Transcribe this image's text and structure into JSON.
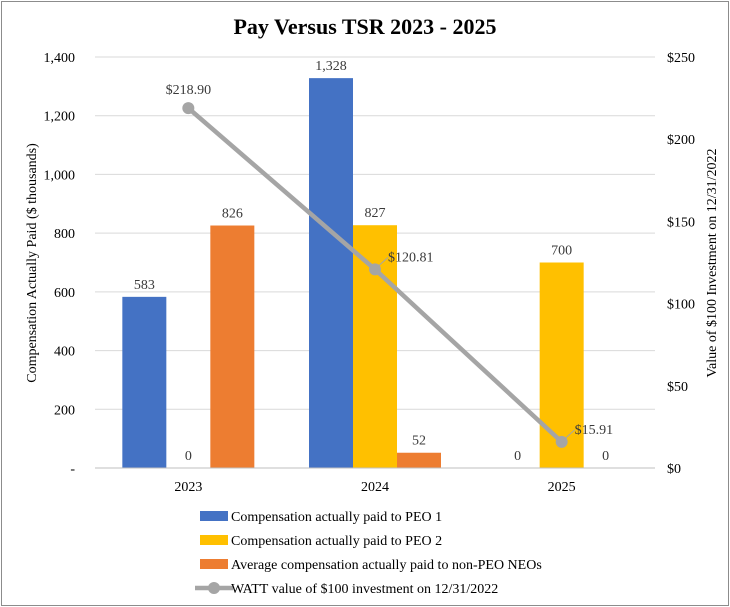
{
  "chart_data": {
    "type": "bar",
    "title": "Pay Versus TSR 2023 - 2025",
    "categories": [
      "2023",
      "2024",
      "2025"
    ],
    "ylabel": "Compensation Actually Paid ($ thousands)",
    "y2label": "Value of $100 Investment on 12/31/2022",
    "ylim": [
      0,
      1400
    ],
    "y2lim": [
      0,
      250
    ],
    "yticks": [
      "-",
      "200",
      "400",
      "600",
      "800",
      "1,000",
      "1,200",
      "1,400"
    ],
    "y2ticks": [
      "$0",
      "$50",
      "$100",
      "$150",
      "$200",
      "$250"
    ],
    "series": [
      {
        "name": "Compensation actually paid to PEO 1",
        "color": "#4472C4",
        "values": [
          583,
          1328,
          0
        ],
        "labels": [
          "583",
          "1,328",
          "0"
        ]
      },
      {
        "name": "Compensation actually paid to PEO 2",
        "color": "#FFC000",
        "values": [
          0,
          827,
          700
        ],
        "labels": [
          "0",
          "827",
          "700"
        ]
      },
      {
        "name": "Average compensation actually paid to non-PEO NEOs",
        "color": "#ED7D31",
        "values": [
          826,
          52,
          0
        ],
        "labels": [
          "826",
          "52",
          "0"
        ]
      }
    ],
    "line_series": {
      "name": "WATT value of $100 investment on 12/31/2022",
      "color": "#A5A5A5",
      "axis": "secondary",
      "values": [
        218.9,
        120.81,
        15.91
      ],
      "labels": [
        "$218.90",
        "$120.81",
        "$15.91"
      ]
    },
    "grid": true,
    "legend_position": "bottom"
  }
}
